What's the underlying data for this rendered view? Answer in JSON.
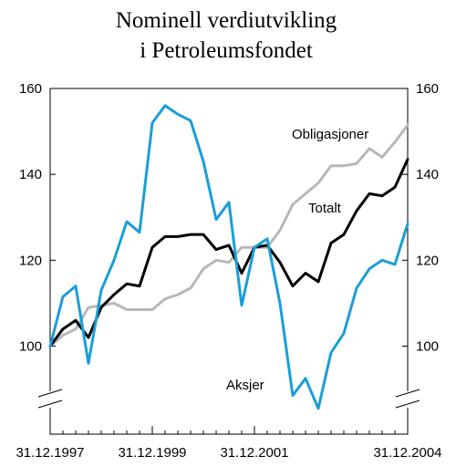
{
  "chart_data": {
    "type": "line",
    "title": [
      "Nominell verdiutvikling",
      "i Petroleumsfondet"
    ],
    "xlabel": "",
    "ylabel": "",
    "ylim": [
      85,
      160
    ],
    "yticks": [
      100,
      120,
      140,
      160
    ],
    "axis_break": true,
    "x_tick_labels": [
      "31.12.1997",
      "31.12.1999",
      "31.12.2001",
      "31.12.2004"
    ],
    "x_tick_index": [
      0,
      8,
      16,
      28
    ],
    "grid": false,
    "series": [
      {
        "name": "Obligasjoner",
        "color": "#b8b8b8",
        "values": [
          100,
          102.5,
          104,
          109,
          109.5,
          110,
          108.5,
          108.5,
          108.5,
          111,
          112,
          113.5,
          118,
          120,
          119.5,
          123,
          123,
          123,
          127,
          133,
          135.5,
          138,
          142,
          142,
          142.5,
          146,
          144,
          147.5,
          151.5
        ]
      },
      {
        "name": "Totalt",
        "color": "#000000",
        "values": [
          100,
          104,
          106,
          102,
          109,
          112,
          114.5,
          114,
          123,
          125.5,
          125.5,
          126,
          126,
          122.5,
          123.5,
          117,
          123,
          123.5,
          119.5,
          114,
          117,
          115,
          124,
          126,
          131.5,
          135.5,
          135,
          137,
          143.5
        ]
      },
      {
        "name": "Aksjer",
        "color": "#1a9ed8",
        "values": [
          100,
          111.5,
          114,
          96,
          113,
          120,
          129,
          126.5,
          152,
          156,
          154,
          152.5,
          143,
          129.5,
          133.5,
          109.5,
          123,
          125,
          110,
          88.5,
          92.5,
          85.5,
          98.5,
          103,
          113.5,
          118,
          120,
          119,
          128.5
        ]
      }
    ]
  }
}
